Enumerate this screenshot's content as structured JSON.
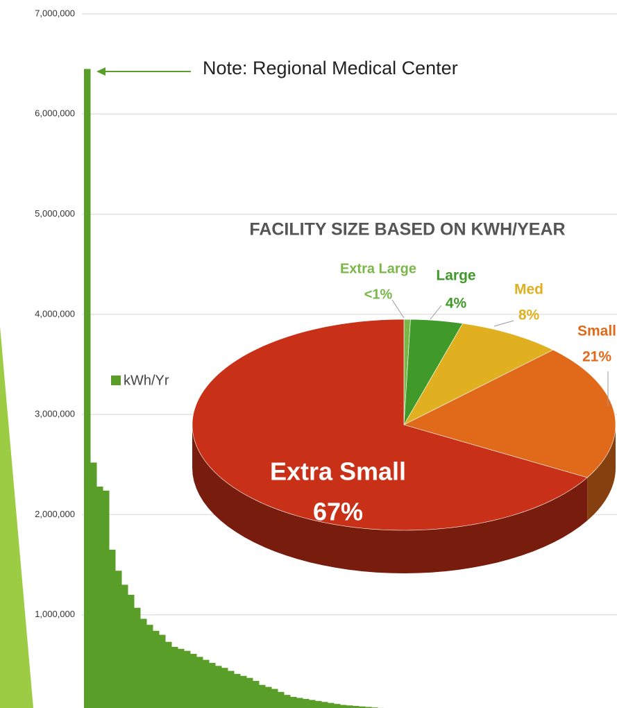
{
  "chart_data": [
    {
      "type": "bar",
      "annotation": "Note: Regional Medical Center",
      "categories": [
        null,
        null,
        null,
        null,
        null,
        null,
        null,
        null,
        null,
        null,
        null,
        null,
        null,
        null,
        null,
        null,
        null,
        null,
        null,
        null,
        null,
        null,
        null,
        null,
        null,
        null,
        null,
        null,
        null,
        null,
        null,
        null,
        null,
        null,
        null,
        null,
        null,
        null,
        null,
        null,
        null,
        null,
        null,
        null,
        null,
        null,
        null,
        null,
        null,
        null
      ],
      "series": [
        {
          "name": "kWh/Yr",
          "color": "#5a9e2a",
          "values": [
            6450000,
            2520000,
            2280000,
            2240000,
            1650000,
            1440000,
            1300000,
            1200000,
            1070000,
            960000,
            900000,
            840000,
            800000,
            730000,
            680000,
            660000,
            640000,
            610000,
            580000,
            550000,
            520000,
            490000,
            470000,
            440000,
            410000,
            390000,
            370000,
            340000,
            300000,
            280000,
            260000,
            230000,
            200000,
            180000,
            170000,
            160000,
            150000,
            140000,
            130000,
            120000,
            110000,
            100000,
            95000,
            90000,
            85000,
            80000,
            75000,
            70000,
            65000,
            60000
          ]
        }
      ],
      "ylim": [
        0,
        7000000
      ],
      "yticks": [
        {
          "value": 1000000,
          "label": "1,000,000"
        },
        {
          "value": 2000000,
          "label": "2,000,000"
        },
        {
          "value": 3000000,
          "label": "3,000,000"
        },
        {
          "value": 4000000,
          "label": "4,000,000"
        },
        {
          "value": 5000000,
          "label": "5,000,000"
        },
        {
          "value": 6000000,
          "label": "6,000,000"
        },
        {
          "value": 7000000,
          "label": "7,000,000"
        }
      ],
      "grid": true
    },
    {
      "type": "pie",
      "title": "FACILITY SIZE BASED ON KWH/YEAR",
      "categories": [
        "Extra Large",
        "Large",
        "Med",
        "Small",
        "Extra Small"
      ],
      "values": [
        0.5,
        4,
        8,
        21,
        67
      ],
      "value_labels": [
        "<1%",
        "4%",
        "8%",
        "21%",
        "67%"
      ],
      "colors": [
        "#7ab648",
        "#3f9a2a",
        "#e0b020",
        "#e06a1a",
        "#c83018"
      ]
    }
  ]
}
